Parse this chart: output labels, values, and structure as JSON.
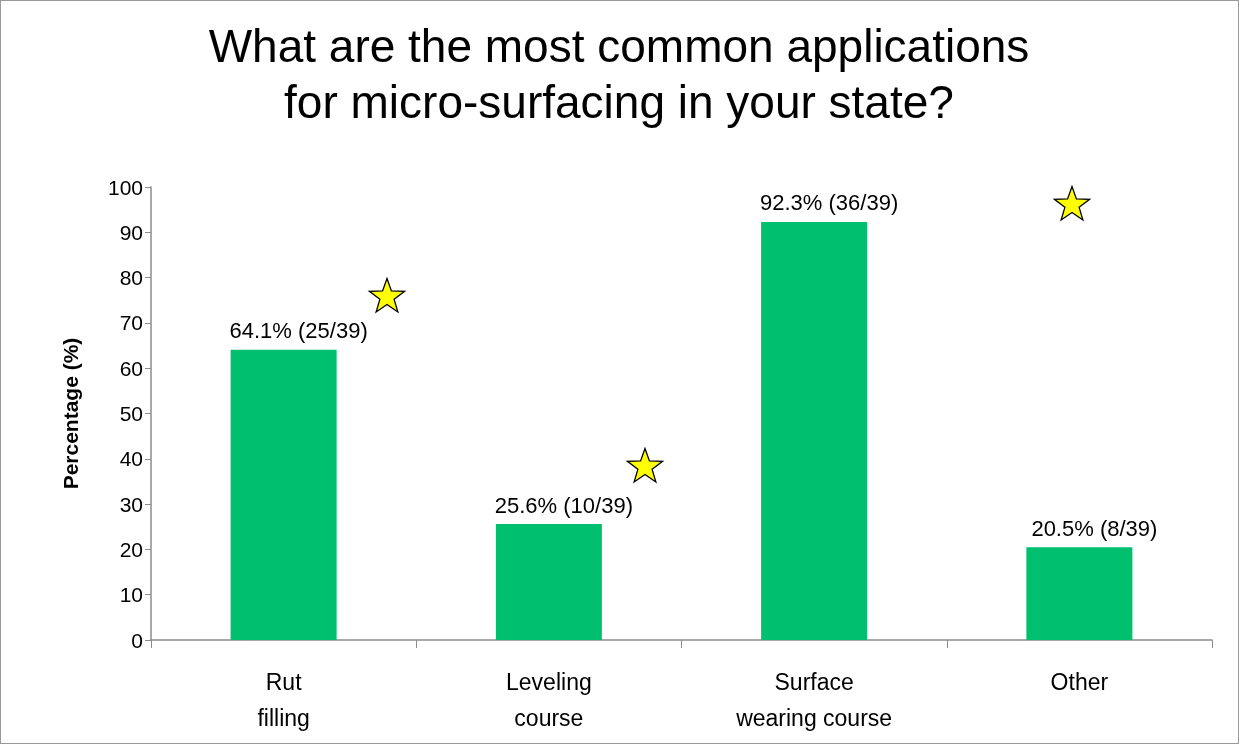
{
  "chart_data": {
    "type": "bar",
    "title": "What are the most common applications\nfor micro-surfacing in your state?",
    "ylabel": "Percentage (%)",
    "categories": [
      "Rut filling",
      "Leveling course",
      "Surface wearing course",
      "Other"
    ],
    "values": [
      64.1,
      25.6,
      92.3,
      20.5
    ],
    "color": "#00bf6f",
    "value_labels": [
      "64.1% (25/39)",
      "25.6% (10/39)",
      "92.3% (36/39)",
      "20.5% (8/39)"
    ],
    "ylim": [
      0,
      100
    ],
    "yticks": [
      0,
      10,
      20,
      30,
      40,
      50,
      60,
      70,
      80,
      90,
      100
    ],
    "grid": false
  }
}
